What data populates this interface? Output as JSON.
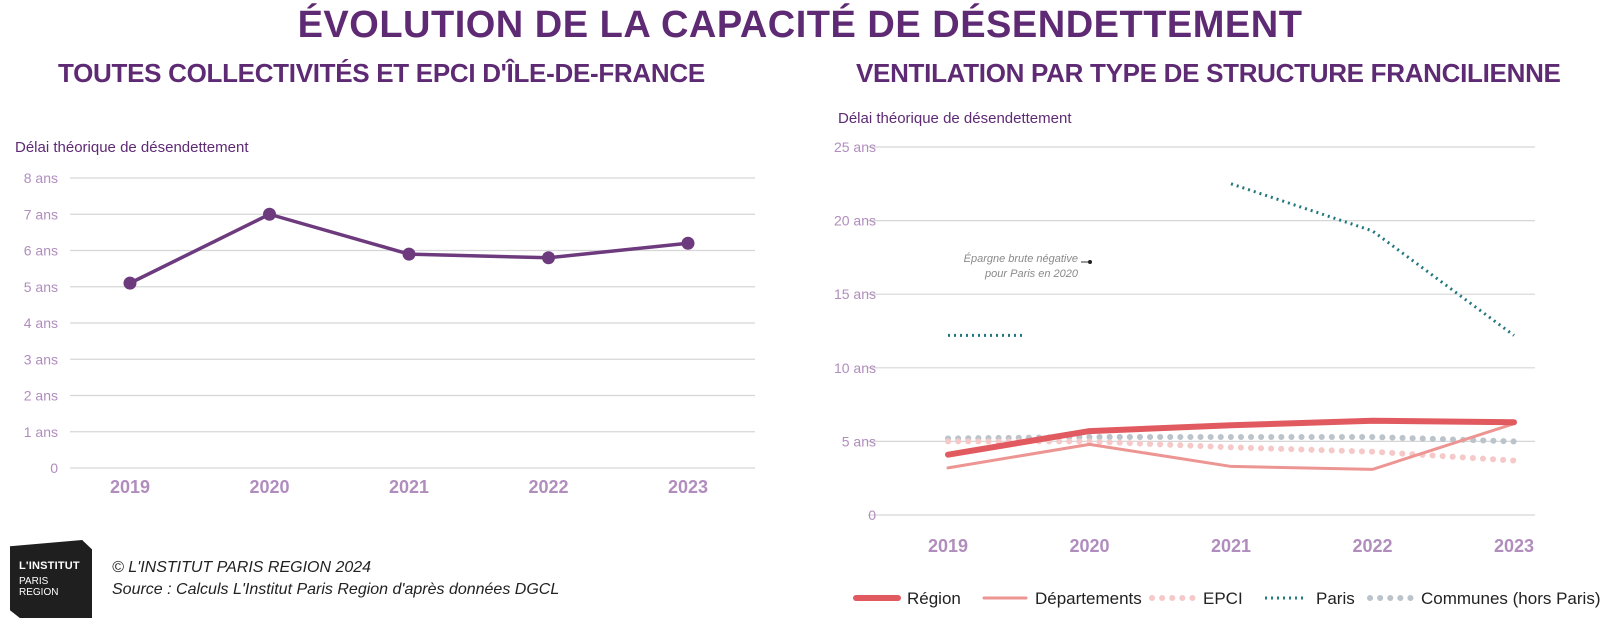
{
  "title": "ÉVOLUTION DE LA CAPACITÉ DE DÉSENDETTEMENT",
  "footer": {
    "copyright": "© L'INSTITUT PARIS REGION 2024",
    "source": "Source : Calculs L'Institut Paris Region d'après données DGCL",
    "logo_line1": "L'INSTITUT",
    "logo_line2": "PARIS",
    "logo_line3": "REGION"
  },
  "colors": {
    "title": "#5e2a74",
    "line_left": "#6d3a7e",
    "tick": "#b08dbd",
    "region": "#e05a5f",
    "departements": "#ec9592",
    "epci": "#f6c9c9",
    "paris": "#23787e",
    "communes": "#bcc4cb"
  },
  "chart_data": [
    {
      "type": "line",
      "title": "TOUTES COLLECTIVITÉS ET EPCI D'ÎLE-DE-FRANCE",
      "ylabel": "Délai théorique de désendettement",
      "categories": [
        "2019",
        "2020",
        "2021",
        "2022",
        "2023"
      ],
      "ylim": [
        0,
        8
      ],
      "y_ticks": [
        "0",
        "1 ans",
        "2 ans",
        "3 ans",
        "4 ans",
        "5 ans",
        "6 ans",
        "7 ans",
        "8 ans"
      ],
      "grid": true,
      "series": [
        {
          "values": [
            5.1,
            7.0,
            5.9,
            5.8,
            6.2
          ]
        }
      ]
    },
    {
      "type": "line",
      "title": "VENTILATION PAR TYPE DE STRUCTURE FRANCILIENNE",
      "ylabel": "Délai théorique de désendettement",
      "categories": [
        "2019",
        "2020",
        "2021",
        "2022",
        "2023"
      ],
      "ylim": [
        0,
        25
      ],
      "y_ticks": [
        "0",
        "5 ans",
        "10 ans",
        "15 ans",
        "20 ans",
        "25 ans"
      ],
      "grid": true,
      "legend_position": "bottom",
      "annotation": [
        "Épargne brute négative",
        "pour Paris en 2020"
      ],
      "series": [
        {
          "name": "Région",
          "values": [
            4.1,
            5.7,
            6.1,
            6.4,
            6.3
          ]
        },
        {
          "name": "Départements",
          "values": [
            3.2,
            4.8,
            3.3,
            3.1,
            6.2
          ]
        },
        {
          "name": "EPCI",
          "values": [
            5.0,
            5.0,
            4.6,
            4.3,
            3.7
          ]
        },
        {
          "name": "Paris",
          "values": [
            12.2,
            null,
            22.5,
            19.3,
            12.2
          ]
        },
        {
          "name": "Communes (hors Paris)",
          "values": [
            5.2,
            5.3,
            5.3,
            5.3,
            5.0
          ]
        }
      ]
    }
  ]
}
